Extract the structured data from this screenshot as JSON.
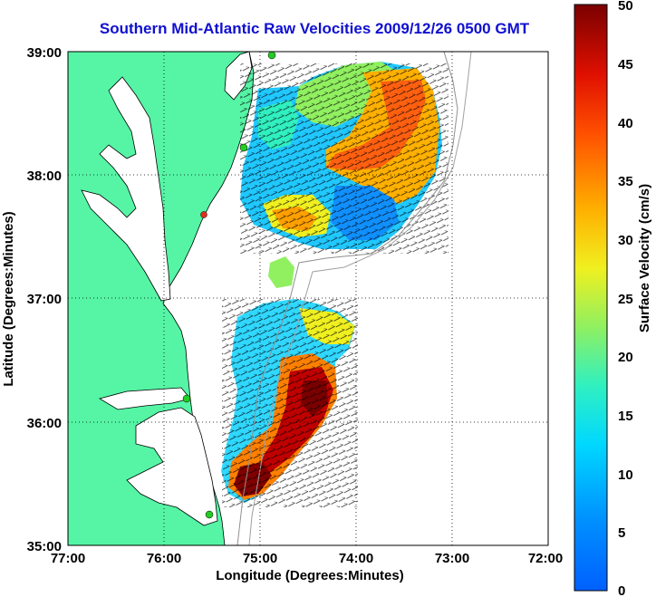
{
  "title": "Southern Mid-Atlantic Raw Velocities 2009/12/26 0500 GMT",
  "axes": {
    "xlabel": "Longitude (Degrees:Minutes)",
    "ylabel": "Latitude (Degrees:Minutes)",
    "x_ticks": [
      "77:00",
      "76:00",
      "75:00",
      "74:00",
      "73:00",
      "72:00"
    ],
    "y_ticks": [
      "39:00",
      "38:00",
      "37:00",
      "36:00",
      "35:00"
    ],
    "xlim": [
      -77,
      -72
    ],
    "ylim": [
      35,
      39
    ],
    "grid": "dotted"
  },
  "colorbar": {
    "label": "Surface Velocity (cm/s)",
    "ticks": [
      "50",
      "45",
      "40",
      "35",
      "30",
      "25",
      "20",
      "15",
      "10",
      "5",
      "0"
    ],
    "range": [
      0,
      50
    ],
    "colormap": "jet"
  },
  "colors": {
    "title": "#1010d0",
    "land": "#55f5a5",
    "coast": "#000000",
    "station": "#22cc22",
    "station_alt": "#e03020"
  }
}
